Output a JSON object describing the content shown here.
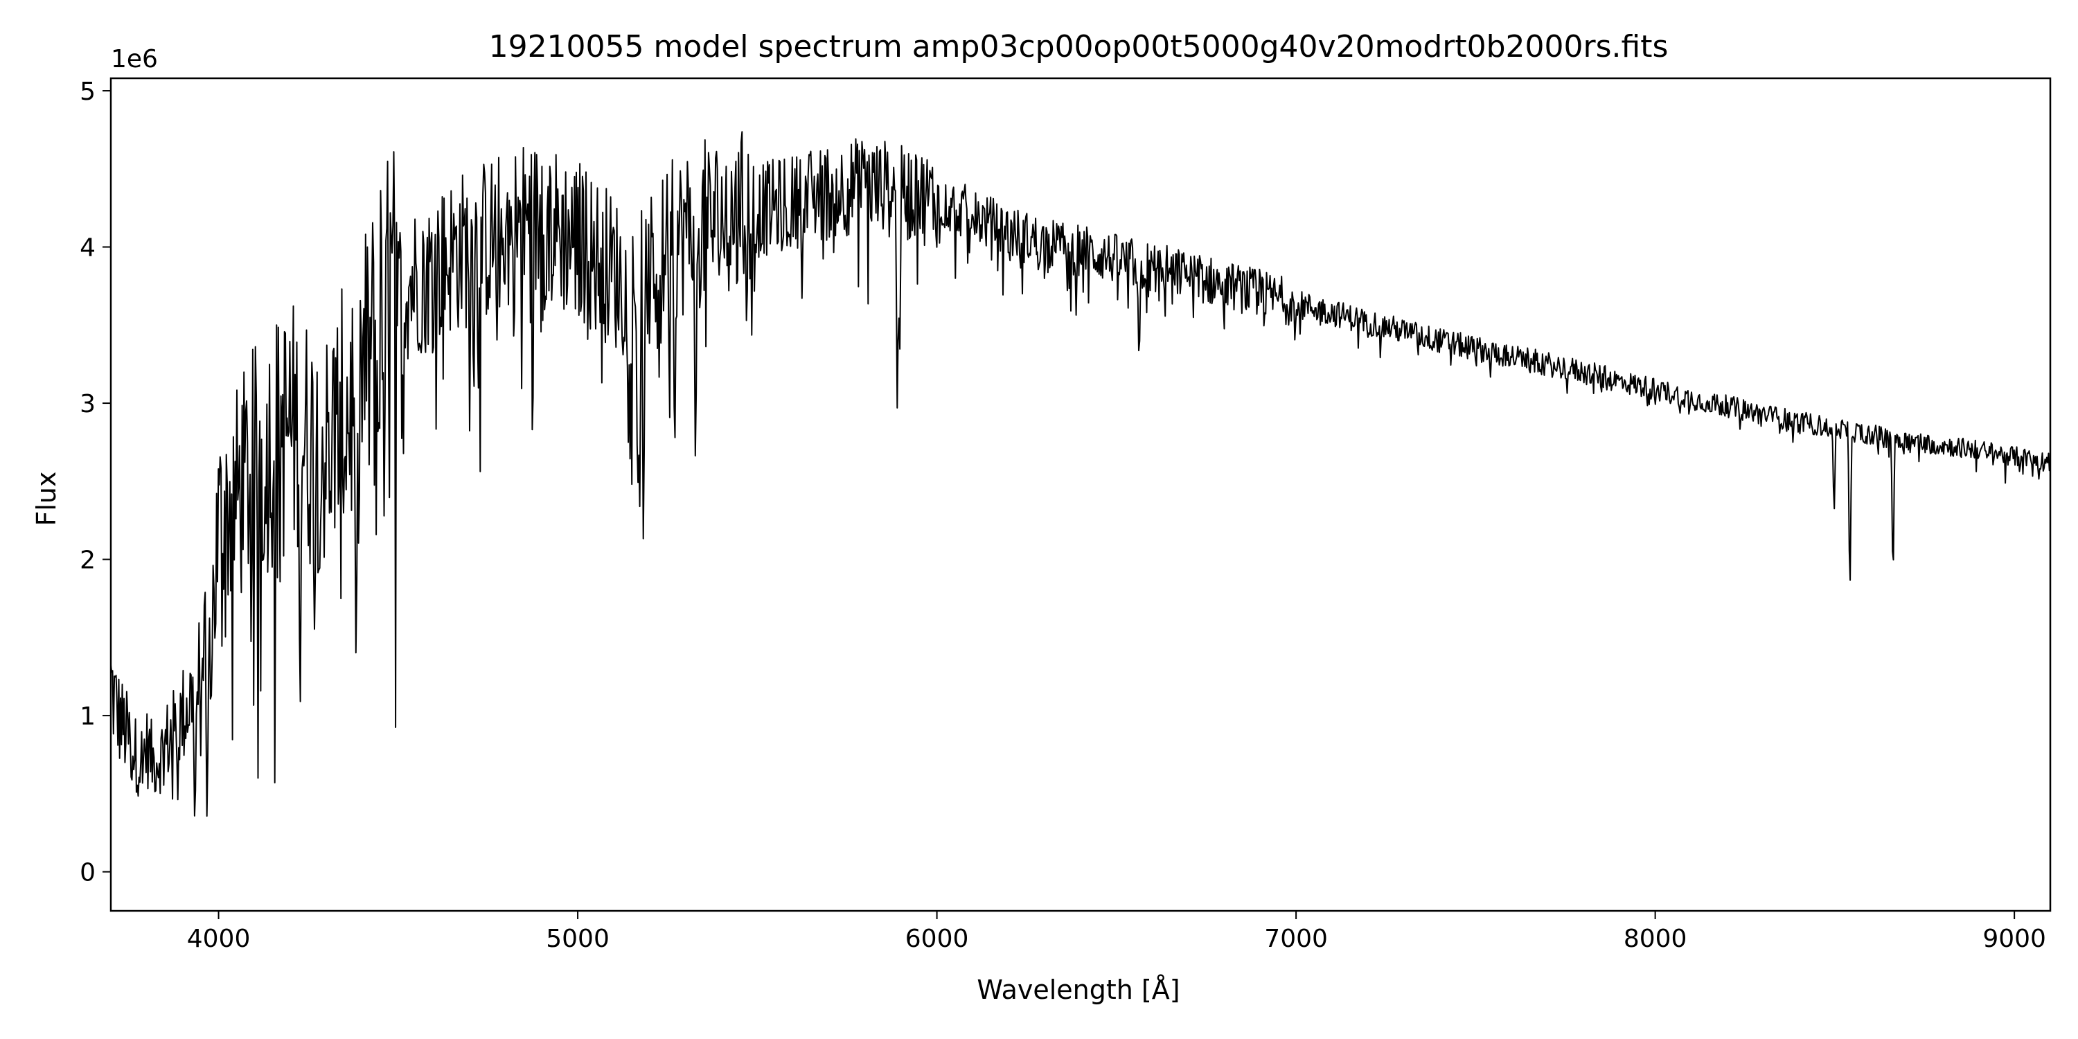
{
  "chart_data": {
    "type": "line",
    "title": "19210055 model spectrum amp03cp00op00t5000g40v20modrt0b2000rs.fits",
    "xlabel": "Wavelength [Å]",
    "ylabel": "Flux",
    "y_offset_label": "1e6",
    "xlim": [
      3700,
      9100
    ],
    "ylim": [
      -250000,
      5080000
    ],
    "x_ticks": [
      4000,
      5000,
      6000,
      7000,
      8000,
      9000
    ],
    "x_tick_labels": [
      "4000",
      "5000",
      "6000",
      "7000",
      "8000",
      "9000"
    ],
    "y_ticks": [
      0,
      1000000,
      2000000,
      3000000,
      4000000,
      5000000
    ],
    "y_tick_labels": [
      "0",
      "1",
      "2",
      "3",
      "4",
      "5"
    ],
    "grid": false,
    "legend": "none",
    "line_color": "#000000",
    "series": [
      {
        "x": [
          3700,
          3720,
          3740,
          3760,
          3780,
          3800,
          3820,
          3840,
          3860,
          3880,
          3900,
          3920,
          3940,
          3960,
          3980,
          4000,
          4050,
          4100,
          4150,
          4200,
          4250,
          4300,
          4350,
          4400,
          4450,
          4500,
          4550,
          4600,
          4650,
          4700,
          4750,
          4800,
          4850,
          4900,
          4950,
          5000,
          5050,
          5100,
          5150,
          5200,
          5250,
          5300,
          5350,
          5400,
          5450,
          5500,
          5550,
          5600,
          5650,
          5700,
          5750,
          5800,
          5850,
          5900,
          5950,
          6000,
          6050,
          6100,
          6150,
          6200,
          6250,
          6300,
          6350,
          6400,
          6450,
          6500,
          6550,
          6600,
          6650,
          6700,
          6750,
          6800,
          6850,
          6900,
          6950,
          7000,
          7100,
          7200,
          7300,
          7400,
          7500,
          7600,
          7700,
          7800,
          7900,
          8000,
          8100,
          8200,
          8300,
          8400,
          8500,
          8600,
          8700,
          8800,
          8900,
          9000,
          9100
        ],
        "y": [
          1200000,
          1000000,
          900000,
          800000,
          700000,
          800000,
          700000,
          750000,
          850000,
          900000,
          1000000,
          1100000,
          1200000,
          1350000,
          1550000,
          2200000,
          2400000,
          2600000,
          2750000,
          2850000,
          2750000,
          2700000,
          2900000,
          3150000,
          3450000,
          3700000,
          3800000,
          3850000,
          3950000,
          4000000,
          4050000,
          4100000,
          4150000,
          4150000,
          4100000,
          4050000,
          3950000,
          3850000,
          3700000,
          3800000,
          4000000,
          4100000,
          4150000,
          4180000,
          4200000,
          4230000,
          4260000,
          4290000,
          4320000,
          4350000,
          4380000,
          4400000,
          4380000,
          4350000,
          4330000,
          4300000,
          4260000,
          4200000,
          4150000,
          4100000,
          4060000,
          4030000,
          4000000,
          3980000,
          3950000,
          3920000,
          3890000,
          3870000,
          3850000,
          3820000,
          3790000,
          3760000,
          3730000,
          3700000,
          3670000,
          3640000,
          3580000,
          3520000,
          3460000,
          3400000,
          3350000,
          3300000,
          3250000,
          3200000,
          3140000,
          3090000,
          3030000,
          2980000,
          2930000,
          2880000,
          2840000,
          2800000,
          2760000,
          2730000,
          2700000,
          2660000,
          2620000
        ]
      }
    ]
  }
}
